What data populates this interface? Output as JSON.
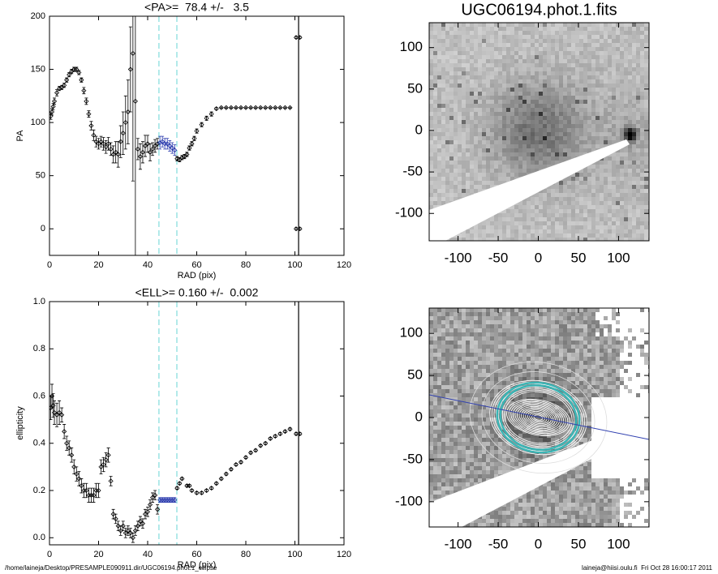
{
  "chart_data": [
    {
      "type": "scatter",
      "title": "<PA>=  78.4 +/-   3.5",
      "xlabel": "RAD (pix)",
      "ylabel": "PA",
      "xlim": [
        0,
        120
      ],
      "xticks": [
        0,
        20,
        40,
        60,
        80,
        100,
        120
      ],
      "ylim": [
        -25,
        200
      ],
      "yticks": [
        0,
        50,
        100,
        150,
        200
      ],
      "vlines": [
        {
          "x": 44.6,
          "color": "#80dcdc",
          "dashed": true
        },
        {
          "x": 51.9,
          "color": "#80dcdc",
          "dashed": true
        },
        {
          "x": 101.5,
          "color": "#000000",
          "dashed": false
        }
      ],
      "series": [
        {
          "color": "#000000",
          "x": [
            0.5,
            1,
            1.5,
            2,
            3,
            4,
            5,
            6,
            7,
            8,
            9,
            10,
            11,
            12,
            13,
            14,
            15,
            16,
            17,
            18,
            19,
            20,
            21,
            22,
            23,
            24,
            25,
            26,
            27,
            28,
            29,
            30,
            31,
            32,
            33,
            34,
            35,
            36,
            37,
            38,
            39,
            40,
            41,
            42,
            43,
            44,
            52,
            53,
            54,
            55,
            56,
            57,
            58,
            59,
            60,
            62,
            64,
            66,
            68,
            70,
            72,
            74,
            76,
            78,
            80,
            82,
            84,
            86,
            88,
            90,
            92,
            94,
            96,
            98,
            100.5,
            100.5,
            102,
            102
          ],
          "values": [
            106,
            110,
            115,
            120,
            128,
            132,
            133,
            135,
            140,
            145,
            148,
            150,
            150,
            147,
            140,
            130,
            120,
            108,
            97,
            88,
            82,
            80,
            82,
            80,
            77,
            80,
            75,
            70,
            72,
            70,
            82,
            90,
            100,
            110,
            150,
            165,
            120,
            75,
            68,
            72,
            78,
            80,
            72,
            75,
            78,
            80,
            66,
            65,
            67,
            68,
            70,
            76,
            80,
            85,
            92,
            98,
            104,
            108,
            113,
            114,
            114,
            114,
            114,
            114,
            114,
            114,
            114,
            114,
            114,
            114,
            114,
            114,
            114,
            114,
            180,
            0,
            180,
            0
          ],
          "errors": [
            3,
            3,
            3,
            3,
            3,
            2,
            2,
            2,
            2,
            2,
            2,
            2,
            2,
            2,
            2,
            3,
            3,
            3,
            4,
            5,
            5,
            5,
            5,
            6,
            6,
            6,
            6,
            8,
            10,
            12,
            15,
            20,
            25,
            30,
            40,
            120,
            150,
            10,
            12,
            10,
            10,
            8,
            8,
            6,
            6,
            5,
            2,
            2,
            2,
            2,
            2,
            2,
            2,
            2,
            2,
            2,
            2,
            2,
            1,
            0.5,
            0.5,
            0.5,
            0.5,
            0.5,
            0.5,
            0.5,
            0.5,
            0.5,
            0.5,
            0.5,
            0.5,
            0.5,
            0.5,
            0.5,
            1,
            1,
            1,
            1
          ]
        },
        {
          "color": "#2233aa",
          "x": [
            45,
            46,
            47,
            48,
            49,
            50,
            51
          ],
          "values": [
            81,
            82,
            80,
            80,
            78,
            76,
            74
          ],
          "errors": [
            6,
            5,
            5,
            5,
            5,
            5,
            5
          ]
        }
      ]
    },
    {
      "type": "image",
      "title": "UGC06194.phot.1.fits",
      "xlim": [
        -136,
        138
      ],
      "xticks": [
        -100,
        -50,
        0,
        50,
        100
      ],
      "ylim": [
        -133,
        130
      ],
      "yticks": [
        -100,
        -50,
        0,
        50,
        100
      ]
    },
    {
      "type": "scatter",
      "title": "<ELL>= 0.160 +/-  0.002",
      "xlabel": "RAD (pix)",
      "ylabel": "ellipticity",
      "xlim": [
        0,
        120
      ],
      "xticks": [
        0,
        20,
        40,
        60,
        80,
        100,
        120
      ],
      "ylim": [
        -0.03,
        1.0
      ],
      "yticks": [
        {
          "value": 0,
          "label": "0.0"
        },
        0.2,
        0.4,
        0.6,
        0.8,
        {
          "value": 1,
          "label": "1.0"
        }
      ],
      "vlines": [
        {
          "x": 44.6,
          "color": "#80dcdc",
          "dashed": true
        },
        {
          "x": 51.9,
          "color": "#80dcdc",
          "dashed": true
        },
        {
          "x": 101.5,
          "color": "#000000",
          "dashed": false
        }
      ],
      "series": [
        {
          "color": "#000000",
          "x": [
            0.5,
            1,
            1.5,
            2,
            3,
            4,
            5,
            6,
            7,
            8,
            9,
            10,
            11,
            12,
            13,
            14,
            15,
            16,
            17,
            18,
            19,
            20,
            21,
            22,
            23,
            24,
            25,
            26,
            27,
            28,
            29,
            30,
            31,
            32,
            33,
            34,
            35,
            36,
            37,
            38,
            39,
            40,
            41,
            42,
            43,
            44,
            52,
            53,
            54,
            56,
            57,
            58,
            60,
            62,
            64,
            66,
            68,
            70,
            72,
            74,
            76,
            78,
            80,
            82,
            84,
            86,
            88,
            90,
            92,
            94,
            96,
            98,
            100.5,
            102
          ],
          "values": [
            0.55,
            0.6,
            0.56,
            0.53,
            0.52,
            0.53,
            0.52,
            0.45,
            0.4,
            0.38,
            0.35,
            0.3,
            0.27,
            0.25,
            0.22,
            0.2,
            0.2,
            0.18,
            0.18,
            0.18,
            0.2,
            0.2,
            0.3,
            0.31,
            0.33,
            0.35,
            0.24,
            0.1,
            0.08,
            0.05,
            0.03,
            0.05,
            0.02,
            0.03,
            0.02,
            0.0,
            0.03,
            0.05,
            0.07,
            0.06,
            0.1,
            0.11,
            0.14,
            0.17,
            0.18,
            0.12,
            0.21,
            0.23,
            0.25,
            0.22,
            0.22,
            0.2,
            0.19,
            0.19,
            0.2,
            0.21,
            0.23,
            0.25,
            0.27,
            0.29,
            0.31,
            0.32,
            0.34,
            0.36,
            0.37,
            0.39,
            0.4,
            0.42,
            0.43,
            0.44,
            0.45,
            0.46,
            0.44,
            0.44
          ],
          "errors": [
            0.05,
            0.05,
            0.05,
            0.05,
            0.05,
            0.05,
            0.03,
            0.03,
            0.03,
            0.03,
            0.03,
            0.03,
            0.03,
            0.03,
            0.03,
            0.03,
            0.03,
            0.03,
            0.03,
            0.03,
            0.03,
            0.03,
            0.03,
            0.03,
            0.03,
            0.03,
            0.02,
            0.02,
            0.02,
            0.02,
            0.02,
            0.02,
            0.02,
            0.02,
            0.02,
            0.02,
            0.02,
            0.02,
            0.02,
            0.02,
            0.02,
            0.02,
            0.02,
            0.02,
            0.02,
            0.02,
            0.005,
            0.005,
            0.005,
            0.005,
            0.005,
            0.005,
            0.005,
            0.005,
            0.005,
            0.005,
            0.005,
            0.005,
            0.005,
            0.005,
            0.005,
            0.005,
            0.005,
            0.005,
            0.005,
            0.005,
            0.005,
            0.005,
            0.005,
            0.005,
            0.005,
            0.005,
            0.005,
            0.005
          ]
        },
        {
          "color": "#2233aa",
          "x": [
            45,
            46,
            47,
            48,
            49,
            50,
            51
          ],
          "values": [
            0.16,
            0.16,
            0.16,
            0.16,
            0.16,
            0.16,
            0.16
          ],
          "errors": [
            0.01,
            0.01,
            0.01,
            0.01,
            0.01,
            0.01,
            0.01
          ]
        }
      ]
    },
    {
      "type": "image",
      "xlim": [
        -136,
        138
      ],
      "xticks": [
        -100,
        -50,
        0,
        50,
        100
      ],
      "ylim": [
        -130,
        130
      ],
      "yticks": [
        -100,
        -50,
        0,
        50,
        100
      ]
    }
  ],
  "footer": {
    "left": "/home/laineja/Desktop/PRESAMPLE090911.dir/UGC06194.phot.1_ellipse",
    "right": "laineja@hiisi.oulu.fi  Fri Oct 28 16:00:17 2011"
  }
}
